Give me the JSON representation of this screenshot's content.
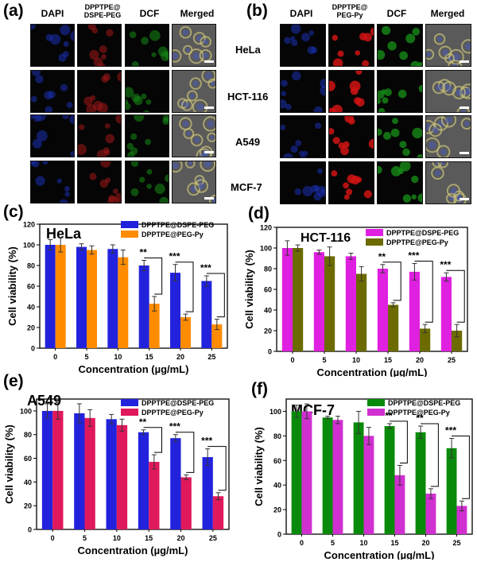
{
  "panel_a": {
    "letter": "(a)",
    "columns": [
      "DAPI",
      "DPPTPE@\nDSPE-PEG",
      "DCF",
      "Merged"
    ]
  },
  "panel_b": {
    "letter": "(b)",
    "columns": [
      "DAPI",
      "DPPTPE@\nPEG-Py",
      "DCF",
      "Merged"
    ],
    "rows": [
      "HeLa",
      "HCT-116",
      "A549",
      "MCF-7"
    ]
  },
  "colors": {
    "dapi": "#1a2fb0",
    "dspe_red": "#a01818",
    "py_red": "#d01414",
    "dcf": "#168a16",
    "blue_bar": "#2222dd",
    "orange_bar": "#ff8c00",
    "magenta_bar": "#e020e0",
    "olive_bar": "#6b6b00",
    "pink_bar": "#e0185c",
    "green_bar": "#0a8a0a",
    "violet_bar": "#d030d0"
  },
  "chart_data": [
    {
      "letter": "(c)",
      "type": "bar",
      "title": "HeLa",
      "xlabel": "Concentration (µg/mL)",
      "ylabel": "Cell viability (%)",
      "ylim": [
        0,
        120
      ],
      "yticks": [
        0,
        20,
        40,
        60,
        80,
        100,
        120
      ],
      "categories": [
        "0",
        "5",
        "10",
        "15",
        "20",
        "25"
      ],
      "series": [
        {
          "name": "DPPTPE@DSPE-PEG",
          "values": [
            100,
            98,
            96,
            80,
            73,
            65
          ],
          "errors": [
            5,
            3,
            4,
            5,
            8,
            5
          ],
          "color": "#2222dd"
        },
        {
          "name": "DPPTPE@PEG-Py",
          "values": [
            100,
            95,
            88,
            43,
            30,
            23
          ],
          "errors": [
            7,
            4,
            7,
            7,
            3,
            5
          ],
          "color": "#ff8c00"
        }
      ],
      "significance": [
        "**",
        "***",
        "***"
      ]
    },
    {
      "letter": "(d)",
      "type": "bar",
      "title": "HCT-116",
      "xlabel": "Concentration (µg/mL)",
      "ylabel": "Cell viability (%)",
      "ylim": [
        0,
        120
      ],
      "yticks": [
        0,
        20,
        40,
        60,
        80,
        100,
        120
      ],
      "categories": [
        "0",
        "5",
        "10",
        "15",
        "20",
        "25"
      ],
      "series": [
        {
          "name": "DPPTPE@DSPE-PEG",
          "values": [
            100,
            96,
            92,
            80,
            77,
            72
          ],
          "errors": [
            7,
            2,
            3,
            4,
            8,
            4
          ],
          "color": "#e020e0"
        },
        {
          "name": "DPPTPE@PEG-Py",
          "values": [
            100,
            92,
            75,
            45,
            22,
            20
          ],
          "errors": [
            3,
            9,
            7,
            2,
            4,
            6
          ],
          "color": "#6b6b00"
        }
      ],
      "significance": [
        "**",
        "***",
        "***"
      ]
    },
    {
      "letter": "(e)",
      "type": "bar",
      "title": "A549",
      "xlabel": "Concentration (µg/mL)",
      "ylabel": "Cell viability (%)",
      "ylim": [
        0,
        110
      ],
      "yticks": [
        0,
        20,
        40,
        60,
        80,
        100
      ],
      "categories": [
        "0",
        "5",
        "10",
        "15",
        "20",
        "25"
      ],
      "series": [
        {
          "name": "DPPTPE@DSPE-PEG",
          "values": [
            100,
            98,
            93,
            82,
            77,
            61
          ],
          "errors": [
            6,
            8,
            4,
            2,
            3,
            7
          ],
          "color": "#2222dd"
        },
        {
          "name": "DPPTPE@PEG-Py",
          "values": [
            100,
            94,
            88,
            57,
            44,
            28
          ],
          "errors": [
            7,
            7,
            5,
            6,
            2,
            3
          ],
          "color": "#e0185c"
        }
      ],
      "significance": [
        "**",
        "***",
        "***"
      ]
    },
    {
      "letter": "(f)",
      "type": "bar",
      "title": "MCF-7",
      "xlabel": "Concentration (µg/mL)",
      "ylabel": "Cell viability (%)",
      "ylim": [
        0,
        110
      ],
      "yticks": [
        0,
        20,
        40,
        60,
        80,
        100
      ],
      "categories": [
        "0",
        "5",
        "10",
        "15",
        "20",
        "25"
      ],
      "series": [
        {
          "name": "DPPTPE@DSPE-PEG",
          "values": [
            100,
            95,
            91,
            88,
            83,
            70
          ],
          "errors": [
            5,
            1,
            9,
            2,
            5,
            8
          ],
          "color": "#0a8a0a"
        },
        {
          "name": "DPPTPE@PEG-Py",
          "values": [
            100,
            93,
            80,
            48,
            33,
            23
          ],
          "errors": [
            6,
            3,
            7,
            8,
            4,
            4
          ],
          "color": "#d030d0"
        }
      ],
      "significance": [
        "**",
        "**",
        "***"
      ]
    }
  ]
}
